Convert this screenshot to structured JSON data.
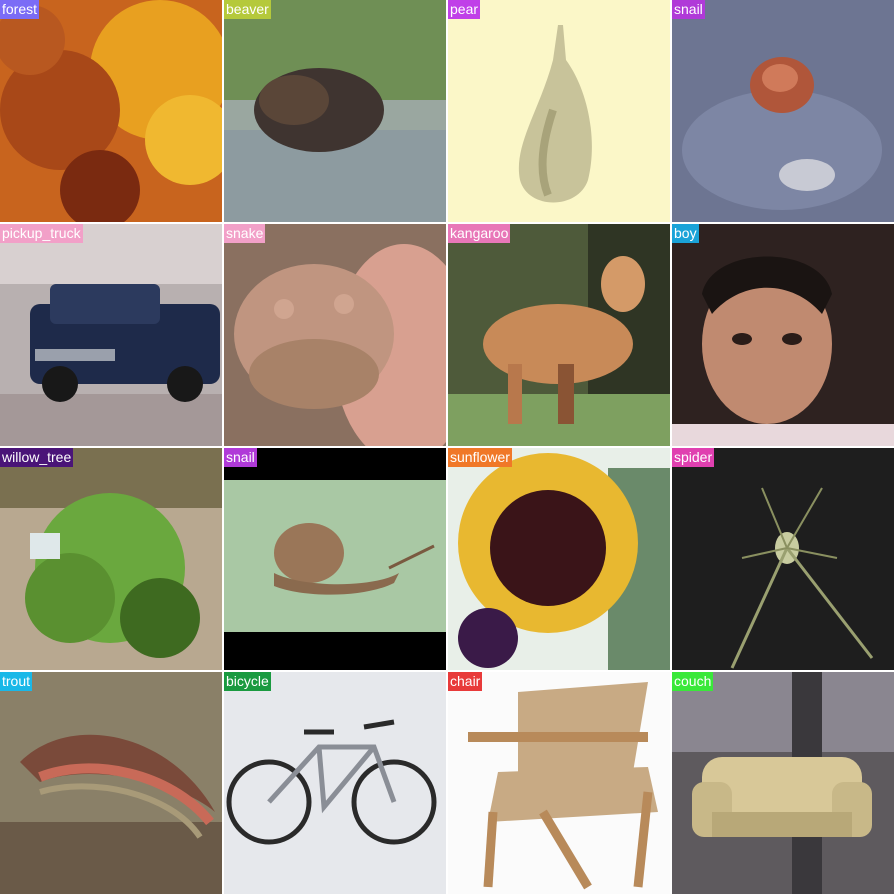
{
  "tiles": [
    {
      "label": "forest",
      "label_color": "#7b6cf6"
    },
    {
      "label": "beaver",
      "label_color": "#b5c93b"
    },
    {
      "label": "pear",
      "label_color": "#c040e8"
    },
    {
      "label": "snail",
      "label_color": "#b03ad8"
    },
    {
      "label": "pickup_truck",
      "label_color": "#f2a0c8"
    },
    {
      "label": "snake",
      "label_color": "#f2a0c8"
    },
    {
      "label": "kangaroo",
      "label_color": "#e877b8"
    },
    {
      "label": "boy",
      "label_color": "#1aa3d8"
    },
    {
      "label": "willow_tree",
      "label_color": "#4a1478"
    },
    {
      "label": "snail",
      "label_color": "#b03ad8"
    },
    {
      "label": "sunflower",
      "label_color": "#f07828"
    },
    {
      "label": "spider",
      "label_color": "#e040b0"
    },
    {
      "label": "trout",
      "label_color": "#19b8e8"
    },
    {
      "label": "bicycle",
      "label_color": "#1a9a40"
    },
    {
      "label": "chair",
      "label_color": "#e83a3a"
    },
    {
      "label": "couch",
      "label_color": "#3ae83a"
    }
  ]
}
